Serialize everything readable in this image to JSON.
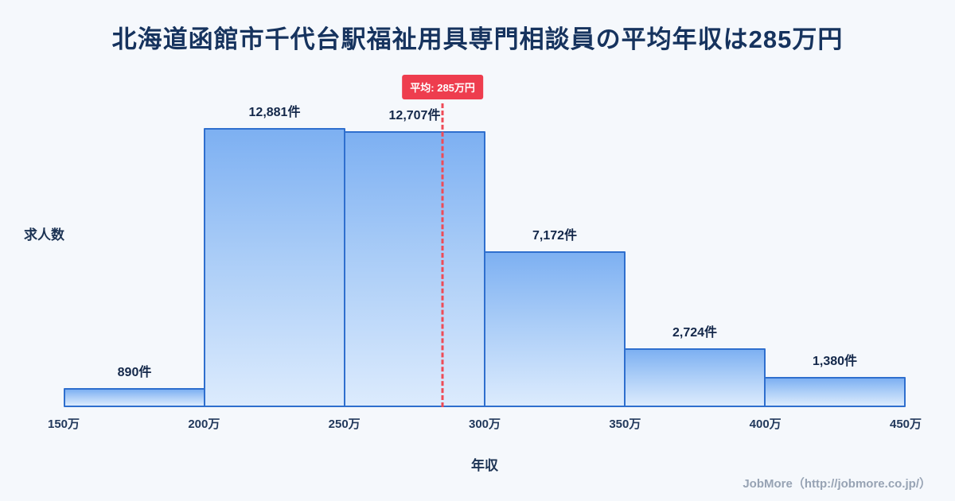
{
  "title": "北海道函館市千代台駅福祉用具専門相談員の平均年収は285万円",
  "chart_data": {
    "type": "bar",
    "title": "北海道函館市千代台駅福祉用具専門相談員の平均年収は285万円",
    "bin_edge_labels": [
      "150万",
      "200万",
      "250万",
      "300万",
      "350万",
      "400万",
      "450万"
    ],
    "bin_edges_value": [
      150,
      200,
      250,
      300,
      350,
      400,
      450
    ],
    "values": [
      890,
      12881,
      12707,
      7172,
      2724,
      1380
    ],
    "value_labels": [
      "890件",
      "12,881件",
      "12,707件",
      "7,172件",
      "2,724件",
      "1,380件"
    ],
    "ylabel": "求人数",
    "xlabel": "年収",
    "ylim": [
      0,
      14000
    ],
    "xlim": [
      150,
      450
    ],
    "grid": false,
    "legend": "none",
    "average": {
      "label": "平均: 285万円",
      "value": 285
    },
    "colors": {
      "background": "#f5f8fc",
      "bar_border": "#2f6fce",
      "bar_gradient_top": "#7db0f2",
      "bar_gradient_bottom": "#dcebfd",
      "average_red": "#ee3d4e",
      "title_navy": "#16335e"
    }
  },
  "footer": {
    "credit": "JobMore（http://jobmore.co.jp/）"
  }
}
